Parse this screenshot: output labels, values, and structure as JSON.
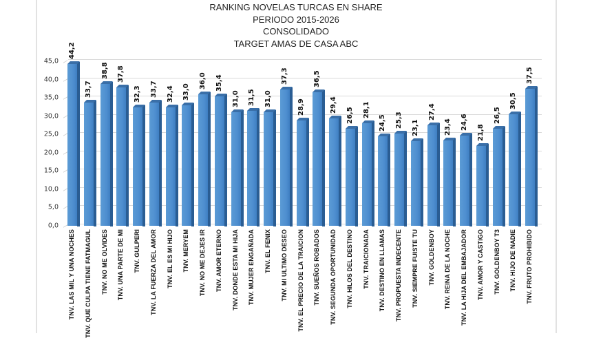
{
  "chart_data": {
    "type": "bar",
    "title": "RANKING NOVELAS TURCAS EN SHARE",
    "subtitle_lines": [
      "PERIODO 2015-2026",
      "CONSOLIDADO",
      "TARGET AMAS DE CASA ABC"
    ],
    "xlabel": "",
    "ylabel": "",
    "ylim": [
      0,
      45
    ],
    "yticks": [
      "0,0",
      "5,0",
      "10,0",
      "15,0",
      "20,0",
      "25,0",
      "30,0",
      "35,0",
      "40,0",
      "45,0"
    ],
    "grid": true,
    "legend": null,
    "style": "3d-column",
    "bar_color": "#5b9bd5",
    "categories": [
      "TNV. LAS MIL Y UNA NOCHES",
      "TNV. QUE CULPA TIENE FATMAGUL",
      "TNV. NO ME OLVIDES",
      "TNV. UNA PARTE DE MI",
      "TNV. GULPERI",
      "TNV. LA FUERZA DEL AMOR",
      "TNV. EL ES MI HIJO",
      "TNV. MERYEM",
      "TNV. NO ME DEJES IR",
      "TNV. AMOR ETERNO",
      "TNV. DONDE ESTA MI HIJA",
      "TNV. MUJER ENGAÑADA",
      "TNV. EL FENIX",
      "TNV. MI ULTIMO DESEO",
      "TNV. EL PRECIO DE LA TRAICION",
      "TNV. SUEÑOS ROBADOS",
      "TNV. SEGUNDA OPORTUNIDAD",
      "TNV. HILOS DEL DESTINO",
      "TNV. TRAICIONADA",
      "TNV. DESTINO EN LLAMAS",
      "TNV. PROPUESTA INDECENTE",
      "TNV. SIEMPRE FUISTE TU",
      "TNV. GOLDENBOY",
      "TNV. REINA DE LA NOCHE",
      "TNV. LA HIJA DEL EMBAJADOR",
      "TNV. AMOR Y CASTIGO",
      "TNV. GOLDENBOY T3",
      "TNV. HIJO DE NADIE",
      "TNV. FRUTO PROHIBIDO"
    ],
    "values": [
      44.2,
      33.7,
      38.8,
      37.8,
      32.3,
      33.7,
      32.4,
      33.0,
      36.0,
      35.4,
      31.0,
      31.5,
      31.0,
      37.3,
      28.9,
      36.5,
      29.4,
      26.5,
      28.1,
      24.5,
      25.3,
      23.1,
      27.4,
      23.4,
      24.6,
      21.8,
      26.5,
      30.5,
      37.5
    ],
    "value_labels": [
      "44,2",
      "33,7",
      "38,8",
      "37,8",
      "32,3",
      "33,7",
      "32,4",
      "33,0",
      "36,0",
      "35,4",
      "31,0",
      "31,5",
      "31,0",
      "37,3",
      "28,9",
      "36,5",
      "29,4",
      "26,5",
      "28,1",
      "24,5",
      "25,3",
      "23,1",
      "27,4",
      "23,4",
      "24,6",
      "21,8",
      "26,5",
      "30,5",
      "37,5"
    ]
  }
}
